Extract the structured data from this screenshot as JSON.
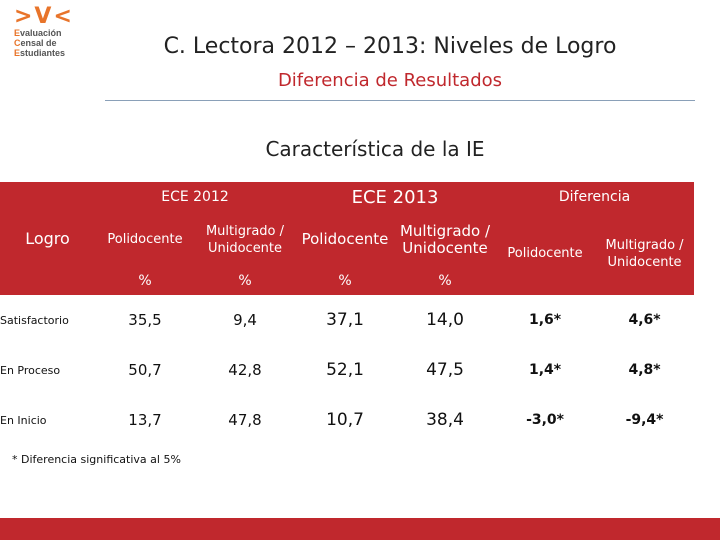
{
  "logo": {
    "lines": [
      {
        "initial": "E",
        "rest": "valuación"
      },
      {
        "initial": "C",
        "rest": "ensal de"
      },
      {
        "initial": "E",
        "rest": "studiantes"
      }
    ]
  },
  "header": {
    "title": "C. Lectora 2012 – 2013: Niveles de Logro",
    "subtitle": "Diferencia de Resultados"
  },
  "section_title": "Característica de la IE",
  "table": {
    "corner": "Logro",
    "group_headers": [
      "ECE 2012",
      "ECE 2013",
      "Diferencia"
    ],
    "sub_headers": [
      "Polidocente",
      "Multigrado / Unidocente",
      "Polidocente",
      "Multigrado / Unidocente",
      "Polidocente",
      "Multigrado / Unidocente"
    ],
    "units": [
      "%",
      "%",
      "%",
      "%"
    ],
    "rows": [
      [
        "Satisfactorio",
        "35,5",
        "9,4",
        "37,1",
        "14,0",
        "1,6*",
        "4,6*"
      ],
      [
        "En Proceso",
        "50,7",
        "42,8",
        "52,1",
        "47,5",
        "1,4*",
        "4,8*"
      ],
      [
        "En Inicio",
        "13,7",
        "47,8",
        "10,7",
        "38,4",
        "-3,0*",
        "-9,4*"
      ]
    ]
  },
  "footnote": "* Diferencia significativa al 5%"
}
